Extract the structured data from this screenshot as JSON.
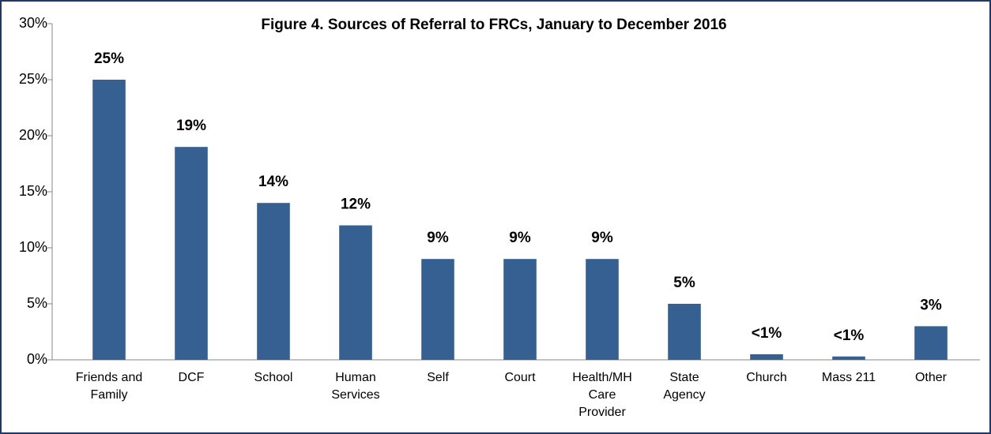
{
  "chart_data": {
    "type": "bar",
    "title": "Figure 4. Sources of Referral to FRCs, January to December 2016",
    "categories": [
      "Friends and Family",
      "DCF",
      "School",
      "Human Services",
      "Self",
      "Court",
      "Health/MH Care Provider",
      "State Agency",
      "Church",
      "Mass 211",
      "Other"
    ],
    "values": [
      25,
      19,
      14,
      12,
      9,
      9,
      9,
      5,
      0.5,
      0.3,
      3
    ],
    "value_labels": [
      "25%",
      "19%",
      "14%",
      "12%",
      "9%",
      "9%",
      "9%",
      "5%",
      "<1%",
      "<1%",
      "3%"
    ],
    "color": "#376092",
    "ylim": [
      0,
      30
    ],
    "yticks": [
      {
        "value": 0,
        "label": "0%"
      },
      {
        "value": 5,
        "label": "5%"
      },
      {
        "value": 10,
        "label": "10%"
      },
      {
        "value": 15,
        "label": "15%"
      },
      {
        "value": 20,
        "label": "20%"
      },
      {
        "value": 25,
        "label": "25%"
      },
      {
        "value": 30,
        "label": "30%"
      }
    ]
  }
}
